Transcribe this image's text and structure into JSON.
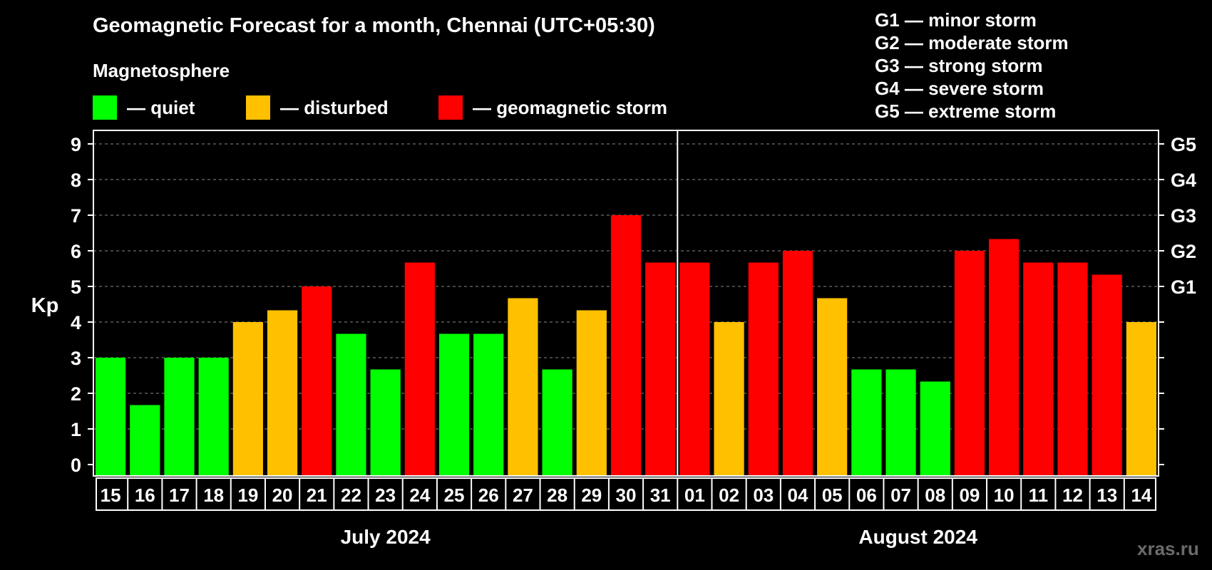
{
  "title": "Geomagnetic Forecast for a month, Chennai (UTC+05:30)",
  "legend": {
    "title": "Magnetosphere",
    "items": [
      {
        "label": "— quiet",
        "color": "#00ff00"
      },
      {
        "label": "— disturbed",
        "color": "#ffc000"
      },
      {
        "label": "— geomagnetic storm",
        "color": "#ff0000"
      }
    ]
  },
  "storm_scale": [
    "G1 — minor storm",
    "G2 — moderate storm",
    "G3 — strong storm",
    "G4 — severe storm",
    "G5 — extreme storm"
  ],
  "watermark": "xras.ru",
  "chart_data": {
    "type": "bar",
    "ylabel": "Kp",
    "ylim": [
      0,
      9
    ],
    "yticks": [
      "0",
      "1",
      "2",
      "3",
      "4",
      "5",
      "6",
      "7",
      "8",
      "9"
    ],
    "right_axis_labels": [
      {
        "value": 5,
        "label": "G1"
      },
      {
        "value": 6,
        "label": "G2"
      },
      {
        "value": 7,
        "label": "G3"
      },
      {
        "value": 8,
        "label": "G4"
      },
      {
        "value": 9,
        "label": "G5"
      }
    ],
    "grid": "dashed horizontal",
    "months": [
      {
        "label": "July 2024",
        "start": 0,
        "count": 17
      },
      {
        "label": "August 2024",
        "start": 17,
        "count": 14
      }
    ],
    "categories": [
      "15",
      "16",
      "17",
      "18",
      "19",
      "20",
      "21",
      "22",
      "23",
      "24",
      "25",
      "26",
      "27",
      "28",
      "29",
      "30",
      "31",
      "01",
      "02",
      "03",
      "04",
      "05",
      "06",
      "07",
      "08",
      "09",
      "10",
      "11",
      "12",
      "13",
      "14"
    ],
    "values": [
      3,
      1.67,
      3,
      3,
      4,
      4.33,
      5,
      3.67,
      2.67,
      5.67,
      3.67,
      3.67,
      4.67,
      2.67,
      4.33,
      7,
      5.67,
      5.67,
      4,
      5.67,
      6,
      4.67,
      2.67,
      2.67,
      2.33,
      6,
      6.33,
      5.67,
      5.67,
      5.33,
      4
    ],
    "levels": [
      "quiet",
      "quiet",
      "quiet",
      "quiet",
      "disturbed",
      "disturbed",
      "storm",
      "quiet",
      "quiet",
      "storm",
      "quiet",
      "quiet",
      "disturbed",
      "quiet",
      "disturbed",
      "storm",
      "storm",
      "storm",
      "disturbed",
      "storm",
      "storm",
      "disturbed",
      "quiet",
      "quiet",
      "quiet",
      "storm",
      "storm",
      "storm",
      "storm",
      "storm",
      "disturbed"
    ],
    "level_colors": {
      "quiet": "#00ff00",
      "disturbed": "#ffc000",
      "storm": "#ff0000"
    }
  }
}
